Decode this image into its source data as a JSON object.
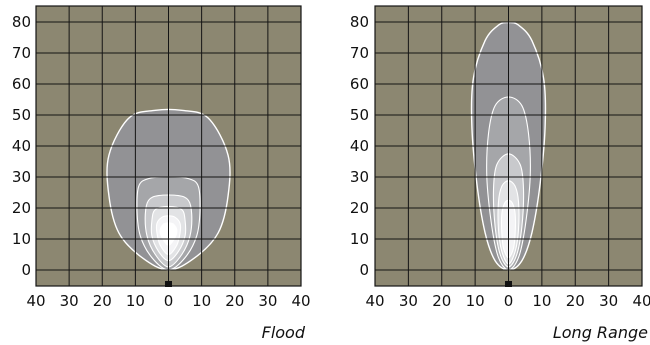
{
  "chart_data": [
    {
      "type": "contour",
      "title": "Flood",
      "x_ticks": [
        "40",
        "30",
        "20",
        "10",
        "0",
        "10",
        "20",
        "30",
        "40"
      ],
      "y_ticks": [
        "80",
        "70",
        "60",
        "50",
        "40",
        "30",
        "20",
        "10",
        "0"
      ],
      "xlim": [
        -40,
        40
      ],
      "ylim": [
        -3,
        85
      ],
      "grid": true,
      "colors": {
        "background": "#8c8771",
        "grid": "#141414",
        "outer_zone": "#929295",
        "contour_line": "#ffffff"
      },
      "contours": [
        {
          "points": [
            [
              0,
              0
            ],
            [
              -8,
              4
            ],
            [
              -15,
              12
            ],
            [
              -18,
              24
            ],
            [
              -18,
              37
            ],
            [
              -12,
              49
            ],
            [
              -4,
              51.5
            ],
            [
              4,
              51.5
            ],
            [
              12,
              49
            ],
            [
              18,
              37
            ],
            [
              18,
              24
            ],
            [
              15,
              12
            ],
            [
              8,
              4
            ]
          ]
        },
        {
          "points": [
            [
              0,
              0
            ],
            [
              -5,
              4
            ],
            [
              -8.5,
              11
            ],
            [
              -9.5,
              19
            ],
            [
              -9,
              27
            ],
            [
              -6,
              29.5
            ],
            [
              0,
              30
            ],
            [
              6,
              29.5
            ],
            [
              9,
              27
            ],
            [
              9.5,
              19
            ],
            [
              8.5,
              11
            ],
            [
              5,
              4
            ]
          ]
        },
        {
          "points": [
            [
              0,
              1
            ],
            [
              -4,
              5
            ],
            [
              -6.5,
              11
            ],
            [
              -7,
              18
            ],
            [
              -6,
              22.5
            ],
            [
              -3,
              24
            ],
            [
              3,
              24
            ],
            [
              6,
              22.5
            ],
            [
              7,
              18
            ],
            [
              6.5,
              11
            ],
            [
              4,
              5
            ]
          ]
        },
        {
          "points": [
            [
              0,
              3
            ],
            [
              -3,
              6
            ],
            [
              -5,
              11
            ],
            [
              -5,
              16
            ],
            [
              -4,
              19.5
            ],
            [
              0,
              20.5
            ],
            [
              4,
              19.5
            ],
            [
              5,
              16
            ],
            [
              5,
              11
            ],
            [
              3,
              6
            ]
          ]
        },
        {
          "points": [
            [
              0,
              5
            ],
            [
              -2.5,
              8
            ],
            [
              -3.5,
              12
            ],
            [
              -3.5,
              15
            ],
            [
              -2,
              17
            ],
            [
              0,
              17.5
            ],
            [
              2,
              17
            ],
            [
              3.5,
              15
            ],
            [
              3.5,
              12
            ],
            [
              2.5,
              8
            ]
          ]
        },
        {
          "points": [
            [
              0,
              8
            ],
            [
              -2,
              10.5
            ],
            [
              -2.5,
              13
            ],
            [
              -1.5,
              14.8
            ],
            [
              0,
              15.2
            ],
            [
              1.5,
              14.8
            ],
            [
              2.5,
              13
            ],
            [
              2,
              10.5
            ]
          ]
        }
      ]
    },
    {
      "type": "contour",
      "title": "Long Range",
      "x_ticks": [
        "40",
        "30",
        "20",
        "10",
        "0",
        "10",
        "20",
        "30",
        "40"
      ],
      "y_ticks": [
        "80",
        "70",
        "60",
        "50",
        "40",
        "30",
        "20",
        "10",
        "0"
      ],
      "xlim": [
        -40,
        40
      ],
      "ylim": [
        -3,
        85
      ],
      "grid": true,
      "colors": {
        "background": "#8c8771",
        "grid": "#141414",
        "outer_zone": "#929295",
        "contour_line": "#ffffff"
      },
      "contours": [
        {
          "points": [
            [
              0,
              0
            ],
            [
              -4,
              3
            ],
            [
              -7,
              12
            ],
            [
              -9.5,
              28
            ],
            [
              -11,
              47
            ],
            [
              -10.5,
              62
            ],
            [
              -7,
              74
            ],
            [
              -3,
              79
            ],
            [
              0,
              79.8
            ],
            [
              3,
              79
            ],
            [
              7,
              74
            ],
            [
              10.5,
              62
            ],
            [
              11,
              47
            ],
            [
              9.5,
              28
            ],
            [
              7,
              12
            ],
            [
              4,
              3
            ]
          ]
        },
        {
          "points": [
            [
              0,
              0
            ],
            [
              -3,
              4
            ],
            [
              -5,
              14
            ],
            [
              -6.5,
              30
            ],
            [
              -6,
              44
            ],
            [
              -4,
              53
            ],
            [
              0,
              55.8
            ],
            [
              4,
              53
            ],
            [
              6,
              44
            ],
            [
              6.5,
              30
            ],
            [
              5,
              14
            ],
            [
              3,
              4
            ]
          ]
        },
        {
          "points": [
            [
              0,
              1
            ],
            [
              -2.5,
              5
            ],
            [
              -4,
              14
            ],
            [
              -4.5,
              26
            ],
            [
              -3.5,
              34
            ],
            [
              0,
              37.5
            ],
            [
              3.5,
              34
            ],
            [
              4.5,
              26
            ],
            [
              4,
              14
            ],
            [
              2.5,
              5
            ]
          ]
        },
        {
          "points": [
            [
              0,
              2
            ],
            [
              -2,
              6
            ],
            [
              -3,
              13
            ],
            [
              -3,
              22
            ],
            [
              -2,
              27
            ],
            [
              0,
              28.8
            ],
            [
              2,
              27
            ],
            [
              3,
              22
            ],
            [
              3,
              13
            ],
            [
              2,
              6
            ]
          ]
        },
        {
          "points": [
            [
              0,
              4
            ],
            [
              -1.5,
              7
            ],
            [
              -2,
              12
            ],
            [
              -2,
              18
            ],
            [
              -1.2,
              21.5
            ],
            [
              0,
              22.5
            ],
            [
              1.2,
              21.5
            ],
            [
              2,
              18
            ],
            [
              2,
              12
            ],
            [
              1.5,
              7
            ]
          ]
        }
      ]
    }
  ]
}
